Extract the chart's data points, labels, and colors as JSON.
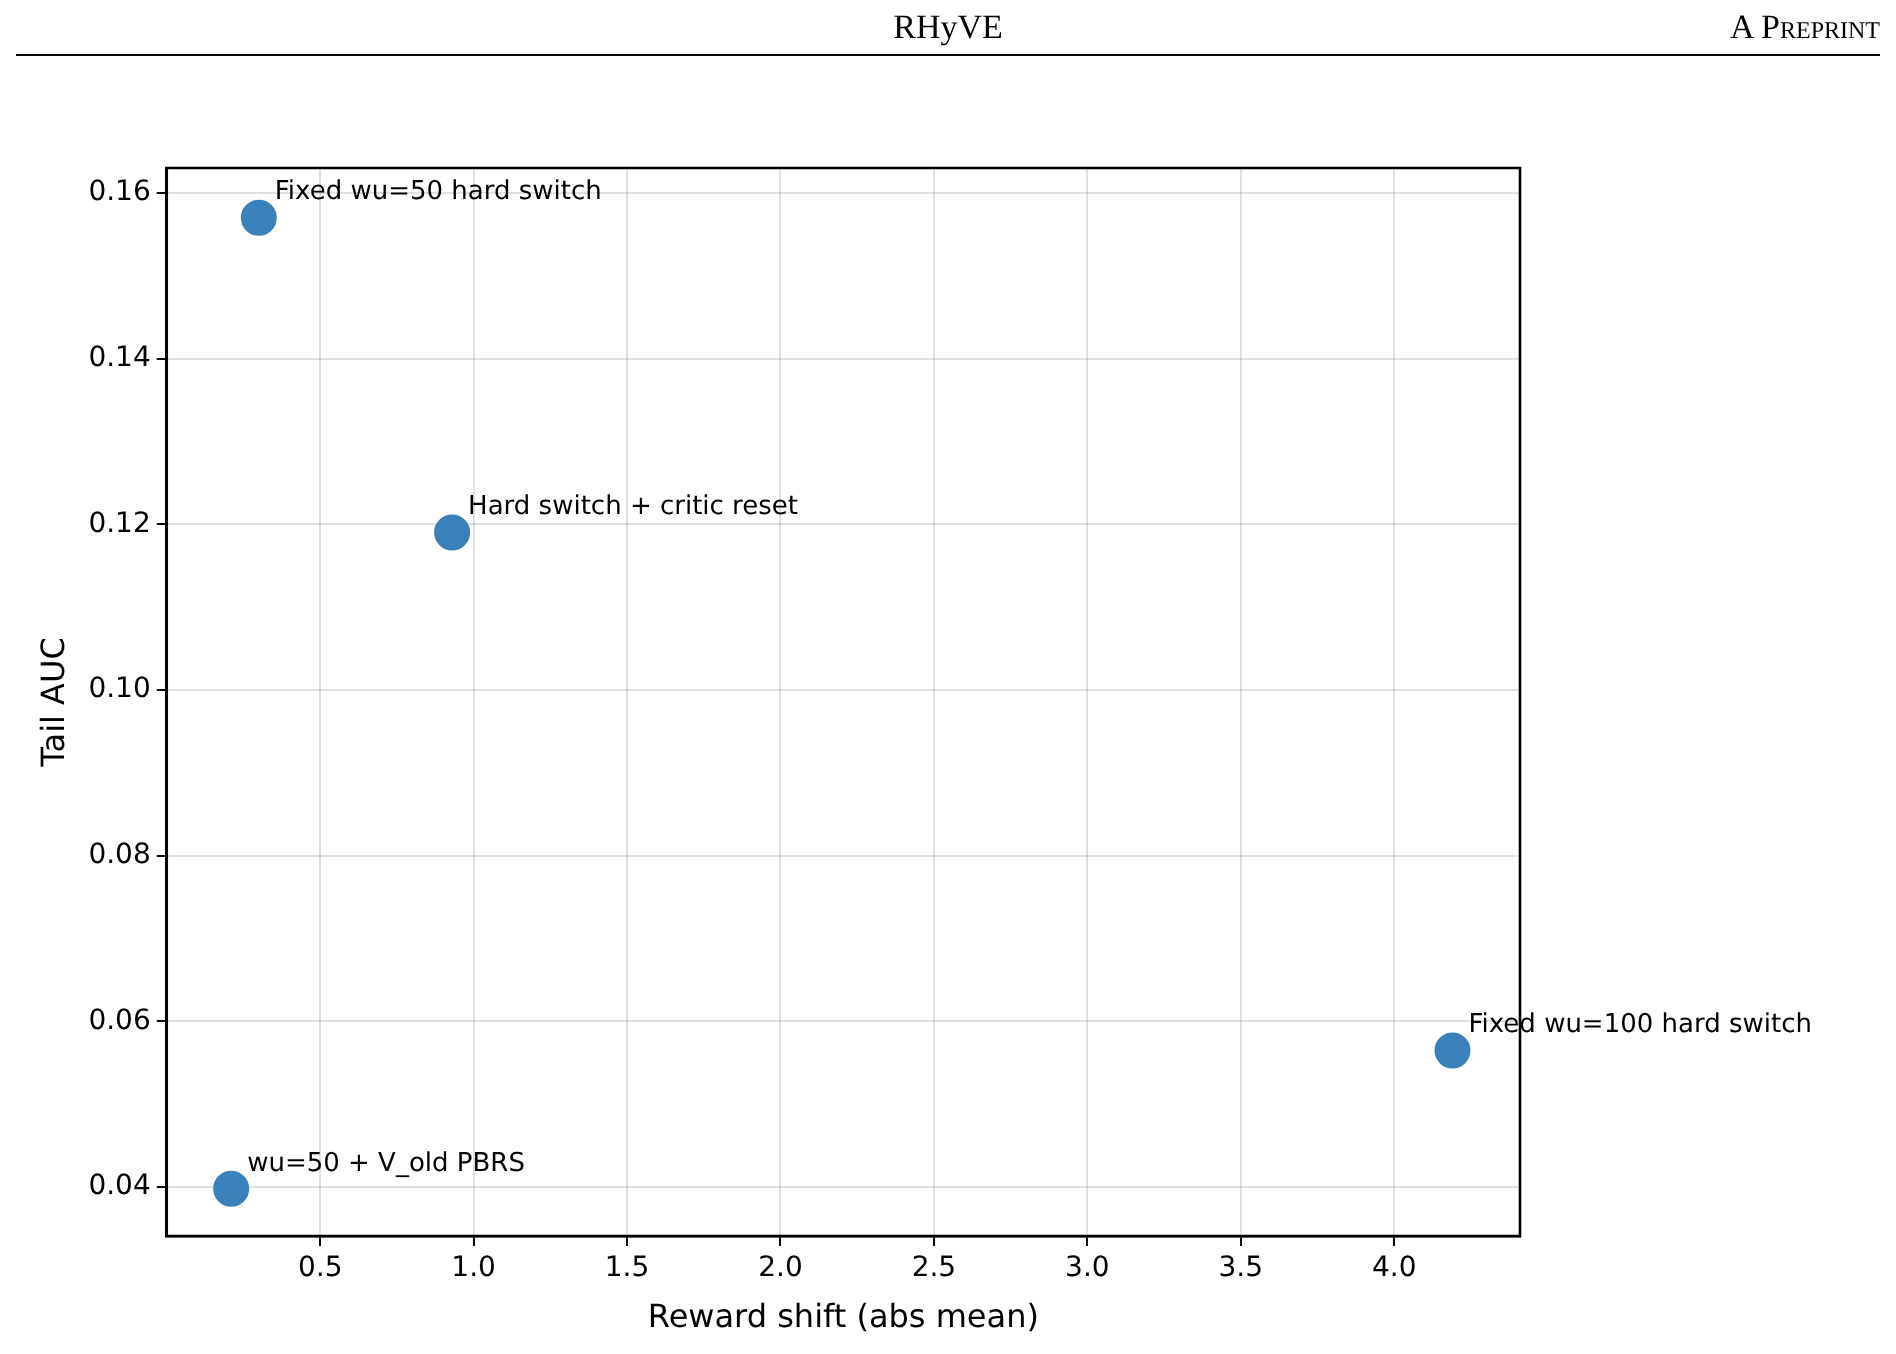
{
  "chart_data": {
    "type": "scatter",
    "xlabel": "Reward shift (abs mean)",
    "ylabel": "Tail AUC",
    "x": [
      0.3,
      0.93,
      4.19,
      0.21
    ],
    "values": [
      0.157,
      0.119,
      0.0565,
      0.0398
    ],
    "color": "#3a80ba",
    "xlim": [
      0.0,
      4.41
    ],
    "xticks": [
      0.5,
      {
        "value": 1,
        "label": "1.0"
      },
      1.5,
      {
        "value": 2,
        "label": "2.0"
      },
      2.5,
      {
        "value": 3,
        "label": "3.0"
      },
      3.5,
      {
        "value": 4,
        "label": "4.0"
      }
    ],
    "ylim": [
      0.0341,
      0.163
    ],
    "yticks": [
      0.04,
      0.06,
      0.08,
      {
        "value": 0.1,
        "label": "0.10"
      },
      0.12,
      0.14,
      0.16
    ],
    "grid": true,
    "legend": false,
    "marker": "circle",
    "annotations": [
      "RHyVE",
      "A Preprint",
      {
        "text": "Fixed wu=50 hard switch",
        "x": 0.3,
        "y": 0.157
      },
      {
        "text": "Hard switch + critic reset",
        "x": 0.93,
        "y": 0.119
      },
      {
        "text": "Fixed wu=100 hard switch",
        "x": 4.19,
        "y": 0.0565
      },
      {
        "text": "wu=50 + V_old PBRS",
        "x": 0.21,
        "y": 0.0398
      }
    ]
  }
}
